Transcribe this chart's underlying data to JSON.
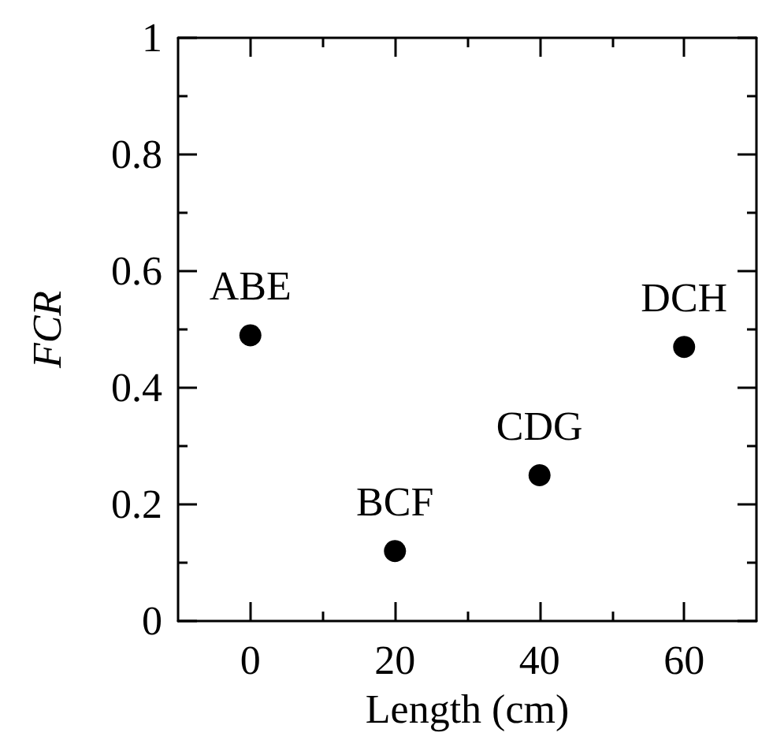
{
  "chart_data": {
    "type": "scatter",
    "xlabel": "Length (cm)",
    "ylabel": "FCR",
    "x": [
      0,
      20,
      40,
      60
    ],
    "series": [
      {
        "color": "#000000",
        "values": [
          0.49,
          0.12,
          0.25,
          0.47
        ]
      }
    ],
    "xlim": [
      -10,
      70
    ],
    "xticks": [
      0,
      20,
      40,
      60
    ],
    "ylim": [
      0,
      1
    ],
    "yticks": [
      0,
      0.2,
      0.4,
      0.6,
      0.8,
      1
    ],
    "marker": "circle",
    "grid": false,
    "annotations": [
      {
        "text": "ABE",
        "x": 0,
        "y": 0.49
      },
      {
        "text": "BCF",
        "x": 20,
        "y": 0.12
      },
      {
        "text": "CDG",
        "x": 40,
        "y": 0.25
      },
      {
        "text": "DCH",
        "x": 60,
        "y": 0.47
      }
    ]
  }
}
